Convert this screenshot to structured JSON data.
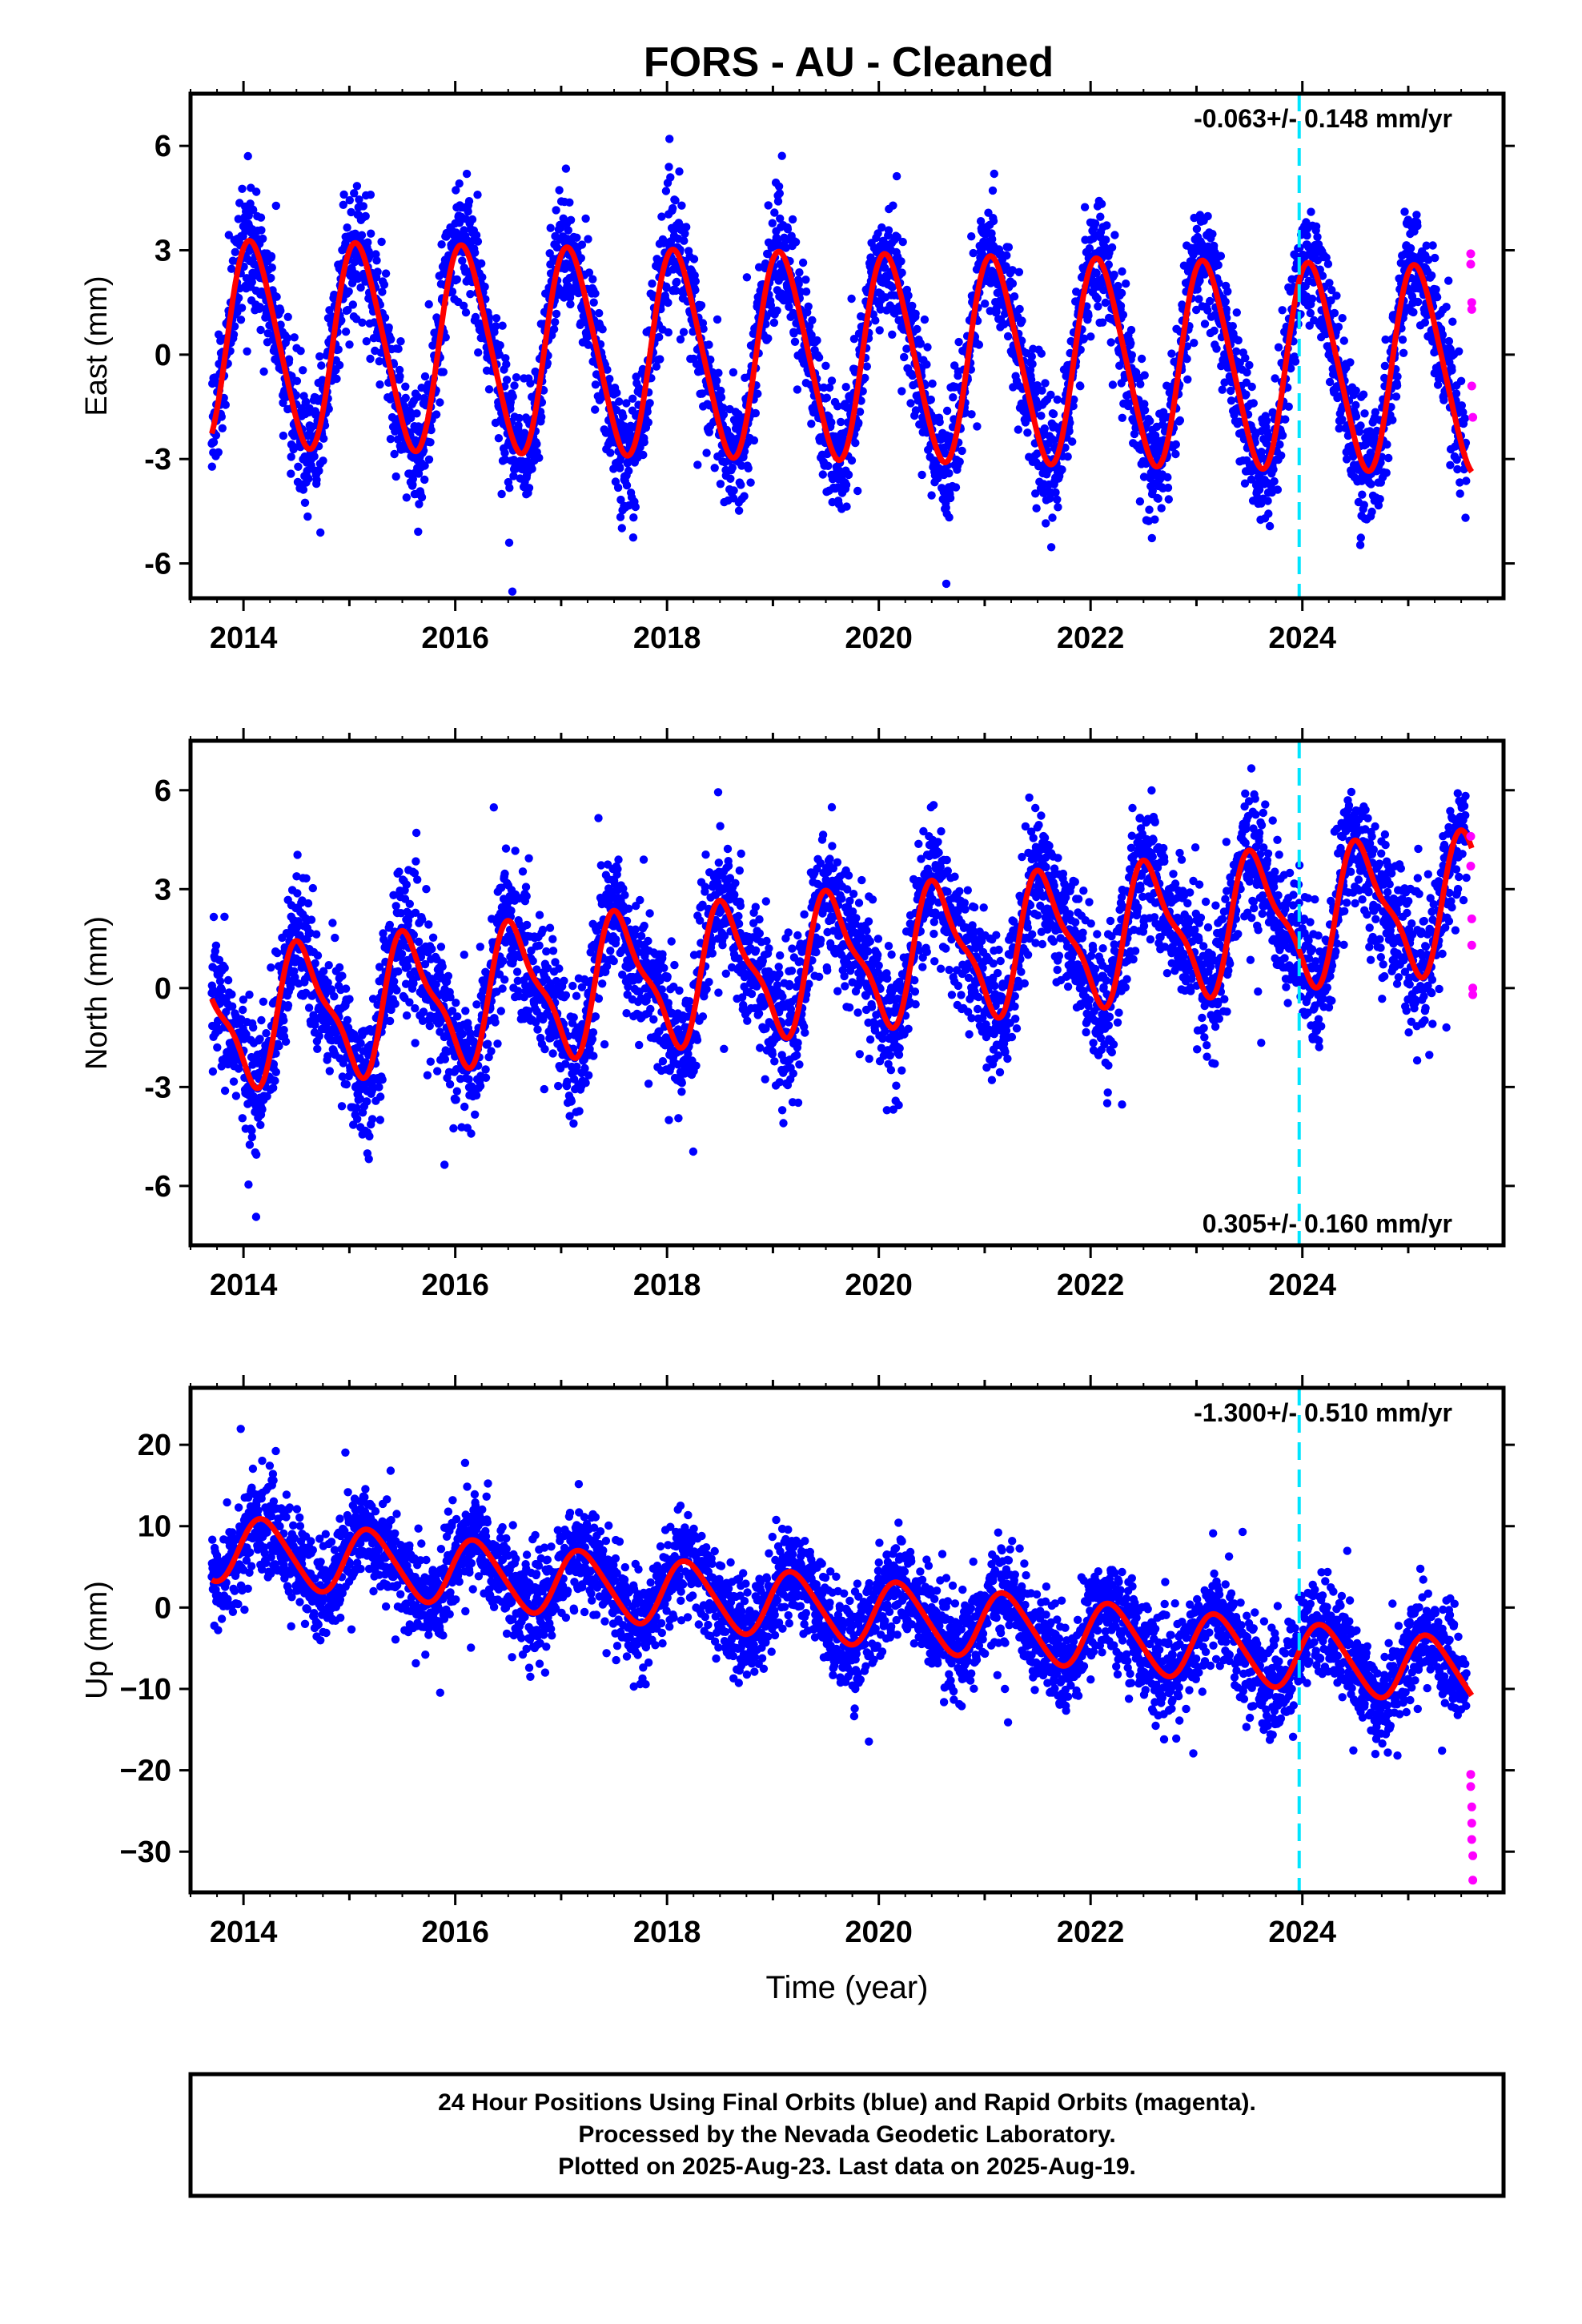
{
  "title": "FORS  - AU - Cleaned",
  "colors": {
    "final_points": "#0000ff",
    "rapid_points": "#ff00ff",
    "model_line": "#ff0000",
    "marker_line": "#00e5ff",
    "frame": "#000000"
  },
  "chart_data": [
    {
      "type": "scatter",
      "component": "east",
      "ylabel": "East (mm)",
      "xlabel": "",
      "xlim": [
        2013.5,
        2025.9
      ],
      "ylim": [
        -7.0,
        7.5
      ],
      "yticks": [
        -6,
        -3,
        0,
        3,
        6
      ],
      "ytick_labels": [
        "-6",
        "-3",
        "0",
        "3",
        "6"
      ],
      "xticks": [
        2014,
        2016,
        2018,
        2020,
        2022,
        2024
      ],
      "xtick_labels": [
        "2014",
        "2016",
        "2018",
        "2020",
        "2022",
        "2024"
      ],
      "rate_label": "-0.063+/- 0.148 mm/yr",
      "rate_label_position": "top-right",
      "series": [
        {
          "kind": "final",
          "x_start": 2013.7,
          "x_end": 2025.55,
          "mean": 0.3,
          "trend_per_yr": -0.063,
          "amp_annual": 2.9,
          "phase": 1.0,
          "amp_semi": 0.35,
          "noise": 0.85
        },
        {
          "kind": "rapid",
          "x": [
            2025.59,
            2025.59,
            2025.6,
            2025.6,
            2025.6,
            2025.61
          ],
          "y": [
            2.9,
            2.6,
            1.5,
            1.3,
            -0.9,
            -1.8
          ]
        },
        {
          "kind": "model",
          "x_start": 2013.7,
          "x_end": 2025.6
        }
      ],
      "marker_x": 2023.97
    },
    {
      "type": "scatter",
      "component": "north",
      "ylabel": "North (mm)",
      "xlabel": "",
      "xlim": [
        2013.5,
        2025.9
      ],
      "ylim": [
        -7.8,
        7.5
      ],
      "yticks": [
        -6,
        -3,
        0,
        3,
        6
      ],
      "ytick_labels": [
        "-6",
        "-3",
        "0",
        "3",
        "6"
      ],
      "xticks": [
        2014,
        2016,
        2018,
        2020,
        2022,
        2024
      ],
      "xtick_labels": [
        "2014",
        "2016",
        "2018",
        "2020",
        "2022",
        "2024"
      ],
      "rate_label": "0.305+/- 0.160 mm/yr",
      "rate_label_position": "bottom-right",
      "series": [
        {
          "kind": "final",
          "x_start": 2013.7,
          "x_end": 2025.55,
          "mean": -0.9,
          "trend_per_yr": 0.305,
          "amp_annual": 1.9,
          "phase": 4.3,
          "amp_semi": 0.6,
          "noise": 1.0
        },
        {
          "kind": "rapid",
          "x": [
            2025.59,
            2025.59,
            2025.6,
            2025.6,
            2025.61,
            2025.61
          ],
          "y": [
            4.6,
            3.7,
            2.1,
            1.3,
            0.0,
            -0.2
          ]
        },
        {
          "kind": "model",
          "x_start": 2013.7,
          "x_end": 2025.6
        }
      ],
      "marker_x": 2023.97
    },
    {
      "type": "scatter",
      "component": "up",
      "ylabel": "Up (mm)",
      "xlabel": "Time (year)",
      "xlim": [
        2013.5,
        2025.9
      ],
      "ylim": [
        -35.0,
        27.0
      ],
      "yticks": [
        -30,
        -20,
        -10,
        0,
        10,
        20
      ],
      "ytick_labels": [
        "−30",
        "−20",
        "−10",
        "0",
        "10",
        "20"
      ],
      "xticks": [
        2014,
        2016,
        2018,
        2020,
        2022,
        2024
      ],
      "xtick_labels": [
        "2014",
        "2016",
        "2018",
        "2020",
        "2022",
        "2024"
      ],
      "rate_label": "-1.300+/- 0.510 mm/yr",
      "rate_label_position": "top-right",
      "series": [
        {
          "kind": "final",
          "x_start": 2013.7,
          "x_end": 2025.55,
          "mean": 7.0,
          "trend_per_yr": -1.3,
          "amp_annual": 4.0,
          "phase": 0.3,
          "amp_semi": 0.5,
          "noise": 3.0
        },
        {
          "kind": "rapid",
          "x": [
            2025.59,
            2025.59,
            2025.6,
            2025.6,
            2025.6,
            2025.61,
            2025.61
          ],
          "y": [
            -20.5,
            -22.0,
            -24.5,
            -26.5,
            -28.5,
            -30.5,
            -33.5
          ]
        },
        {
          "kind": "model",
          "x_start": 2013.7,
          "x_end": 2025.6
        }
      ],
      "marker_x": 2023.97
    }
  ],
  "footer": {
    "lines": [
      "24 Hour Positions Using Final Orbits (blue) and Rapid Orbits (magenta).",
      "Processed by the Nevada Geodetic Laboratory.",
      "Plotted on 2025-Aug-23. Last data on 2025-Aug-19."
    ]
  }
}
